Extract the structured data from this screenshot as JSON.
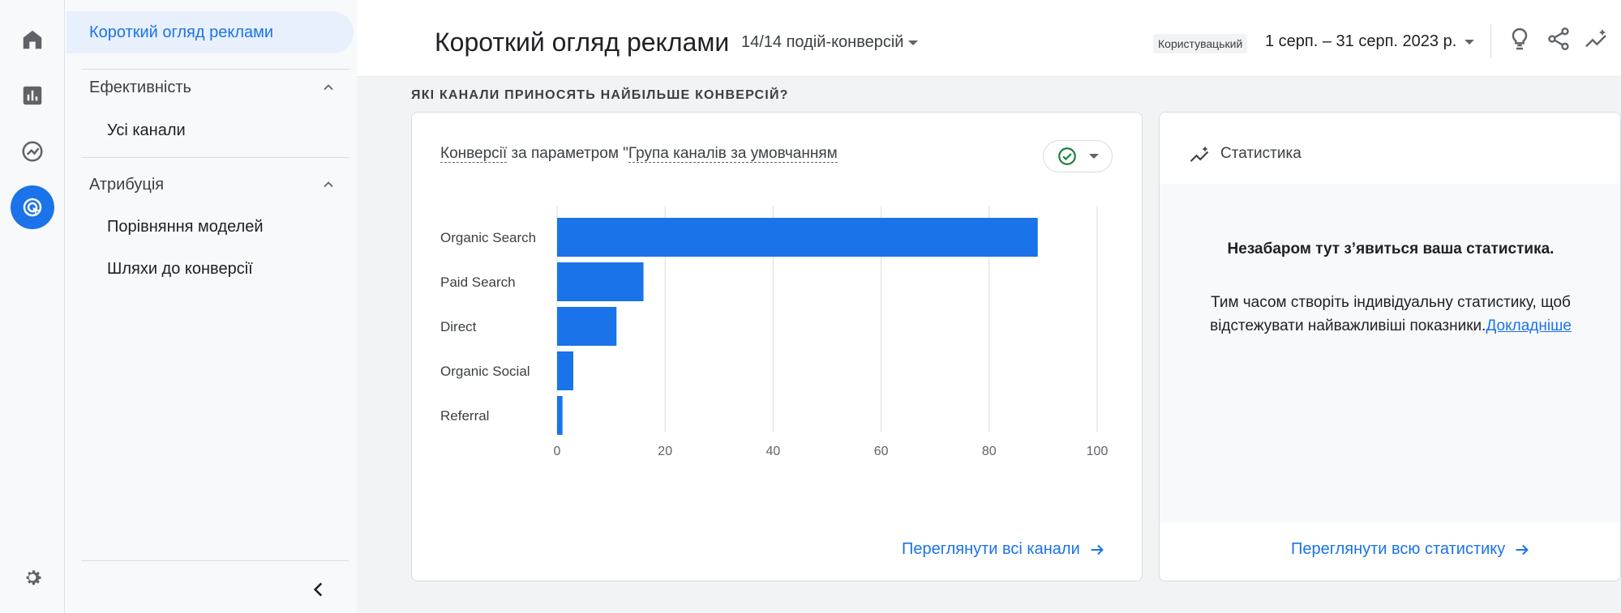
{
  "nav": {
    "active_item": "Короткий огляд реклами",
    "sections": [
      {
        "label": "Ефективність",
        "items": [
          "Усі канали"
        ]
      },
      {
        "label": "Атрибуція",
        "items": [
          "Порівняння моделей",
          "Шляхи до конверсії"
        ]
      }
    ]
  },
  "rail": {
    "icons": [
      "home-icon",
      "reports-icon",
      "explore-icon",
      "advertising-icon",
      "settings-icon"
    ],
    "active": "advertising-icon"
  },
  "header": {
    "title": "Короткий огляд реклами",
    "conversions_select": "14/14 подій-конверсій",
    "custom_chip": "Користувацький",
    "date_range": "1 серп. – 31 серп. 2023 р.",
    "icons": [
      "lightbulb-icon",
      "share-icon",
      "insights-icon"
    ]
  },
  "section_label": "ЯКІ КАНАЛИ ПРИНОСЯТЬ НАЙБІЛЬШЕ КОНВЕРСІЙ?",
  "chart_card": {
    "title_part1": "Конверсії",
    "title_part2": " за параметром \"",
    "title_part3": "Група каналів за умовчанням",
    "link": "Переглянути всі канали"
  },
  "stat_card": {
    "title": "Статистика",
    "heading": "Незабаром тут з’явиться ваша статистика.",
    "text": "Тим часом створіть індивідуальну статистику, щоб відстежувати найважливіші показники.",
    "more_link": "Докладніше",
    "link": "Переглянути всю статистику"
  },
  "colors": {
    "accent": "#1a73e8",
    "bar": "#1a73e8",
    "check": "#188038"
  },
  "chart_data": {
    "type": "bar",
    "orientation": "horizontal",
    "categories": [
      "Organic Search",
      "Paid Search",
      "Direct",
      "Organic Social",
      "Referral"
    ],
    "values": [
      89,
      16,
      11,
      3,
      1
    ],
    "xlim": [
      0,
      100
    ],
    "xticks": [
      0,
      20,
      40,
      60,
      80,
      100
    ],
    "grid": true
  }
}
